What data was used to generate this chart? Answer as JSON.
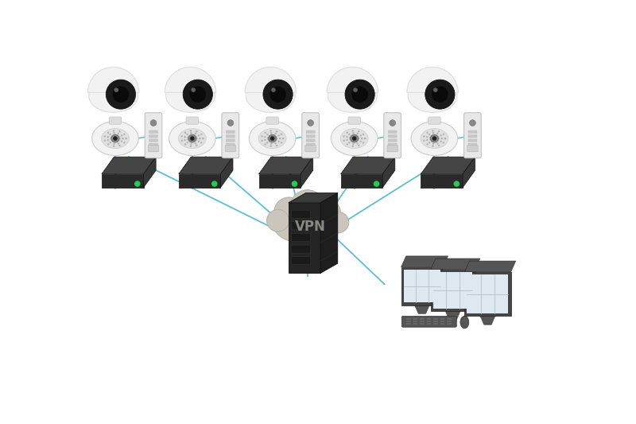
{
  "background_color": "#ffffff",
  "vpn_text": "VPN",
  "line_color": "#5bbfd4",
  "cloud_color": "#ccc5bc",
  "cloud_text_color": "#888880",
  "switch_top": "#454545",
  "switch_front": "#2a2a2a",
  "switch_right": "#383838",
  "switch_green": "#22cc55",
  "server_front": "#252525",
  "server_top": "#3a3a3a",
  "server_right": "#1e1e1e",
  "server_detail": "#303030",
  "monitor_frame": "#454545",
  "monitor_screen": "#dde8f0",
  "monitor_grid": "#b0c0cc",
  "monitor_stand": "#555555",
  "camera_body": "#f2f2f2",
  "camera_body_edge": "#cccccc",
  "camera_lens_outer": "#aaaaaa",
  "camera_lens_inner": "#111111",
  "dome_body": "#f2f2f2",
  "dome_lens": "#111111",
  "intercom_body": "#e8e8e8",
  "intercom_edge": "#bbbbbb"
}
